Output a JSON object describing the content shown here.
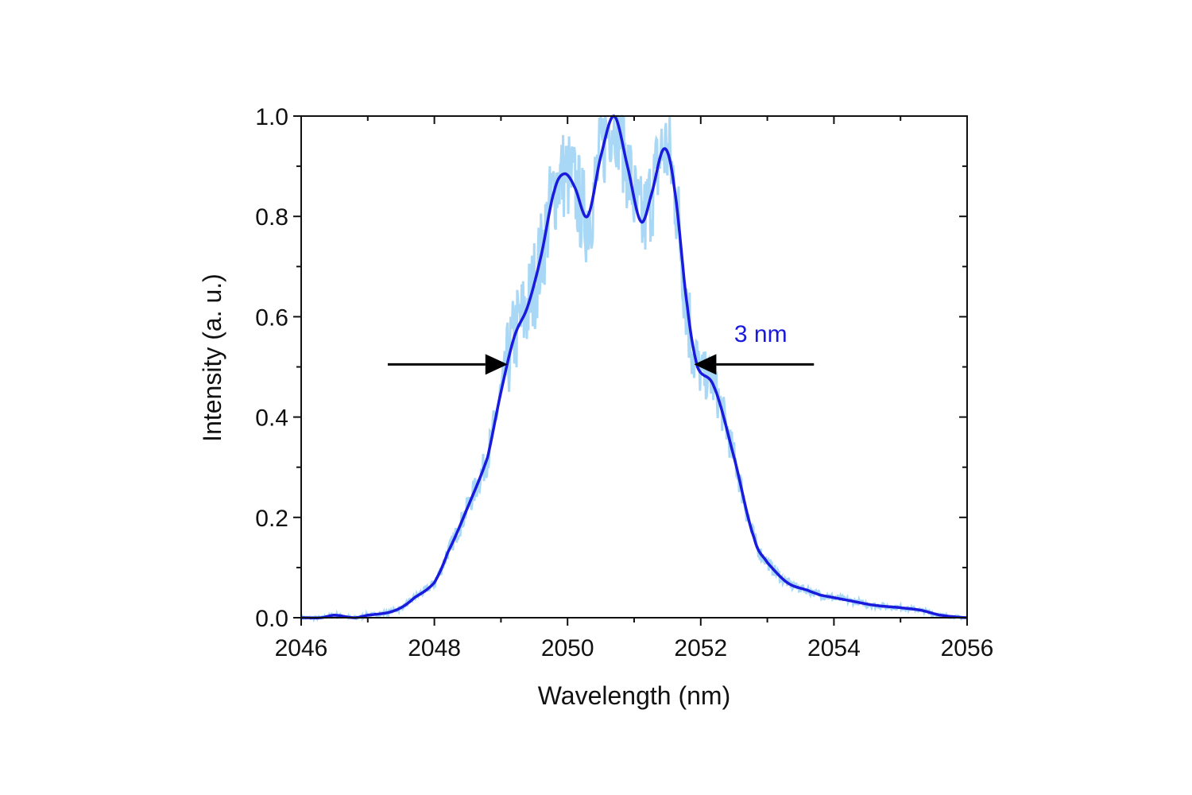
{
  "chart_data": {
    "type": "line",
    "title": "",
    "xlabel": "Wavelength (nm)",
    "ylabel": "Intensity (a. u.)",
    "xlim": [
      2046,
      2056
    ],
    "ylim": [
      0,
      1.0
    ],
    "xticks": [
      2046,
      2048,
      2050,
      2052,
      2054,
      2056
    ],
    "xtick_labels": [
      "2046",
      "2048",
      "2050",
      "2052",
      "2054",
      "2056"
    ],
    "yticks": [
      0.0,
      0.2,
      0.4,
      0.6,
      0.8,
      1.0
    ],
    "ytick_labels": [
      "0.0",
      "0.2",
      "0.4",
      "0.6",
      "0.8",
      "1.0"
    ],
    "grid": false,
    "legend": "none",
    "colors": {
      "smooth": "#1a1adc",
      "raw": "#a8d8f5",
      "arrow": "#000000",
      "annotation": "#1a1adc"
    },
    "series": [
      {
        "name": "smoothed",
        "x": [
          2046.0,
          2046.3,
          2046.5,
          2046.8,
          2047.0,
          2047.3,
          2047.5,
          2047.7,
          2048.0,
          2048.2,
          2048.5,
          2048.8,
          2049.0,
          2049.2,
          2049.4,
          2049.6,
          2049.8,
          2049.95,
          2050.1,
          2050.3,
          2050.5,
          2050.7,
          2050.9,
          2051.1,
          2051.25,
          2051.45,
          2051.6,
          2051.8,
          2051.95,
          2052.2,
          2052.5,
          2052.8,
          2053.0,
          2053.3,
          2053.6,
          2053.8,
          2054.2,
          2054.6,
          2055.0,
          2055.3,
          2055.6,
          2056.0
        ],
        "y": [
          0.0,
          0.0,
          0.005,
          0.0,
          0.005,
          0.01,
          0.02,
          0.04,
          0.07,
          0.13,
          0.22,
          0.32,
          0.45,
          0.56,
          0.62,
          0.72,
          0.85,
          0.885,
          0.86,
          0.8,
          0.92,
          1.0,
          0.9,
          0.79,
          0.84,
          0.935,
          0.86,
          0.62,
          0.5,
          0.46,
          0.32,
          0.16,
          0.11,
          0.07,
          0.055,
          0.045,
          0.035,
          0.025,
          0.02,
          0.015,
          0.005,
          0.0
        ]
      },
      {
        "name": "raw",
        "derived_from": "smoothed",
        "noise_amplitude": 0.06,
        "note": "noisy measured spectrum following the smoothed curve"
      }
    ],
    "annotations": [
      {
        "type": "arrow",
        "direction": "right",
        "from_x": 2047.3,
        "to_x": 2049.1,
        "y": 0.505
      },
      {
        "type": "arrow",
        "direction": "left",
        "from_x": 2053.7,
        "to_x": 2051.9,
        "y": 0.505
      },
      {
        "type": "text",
        "text": "3 nm",
        "x": 2052.9,
        "y": 0.55
      }
    ]
  }
}
